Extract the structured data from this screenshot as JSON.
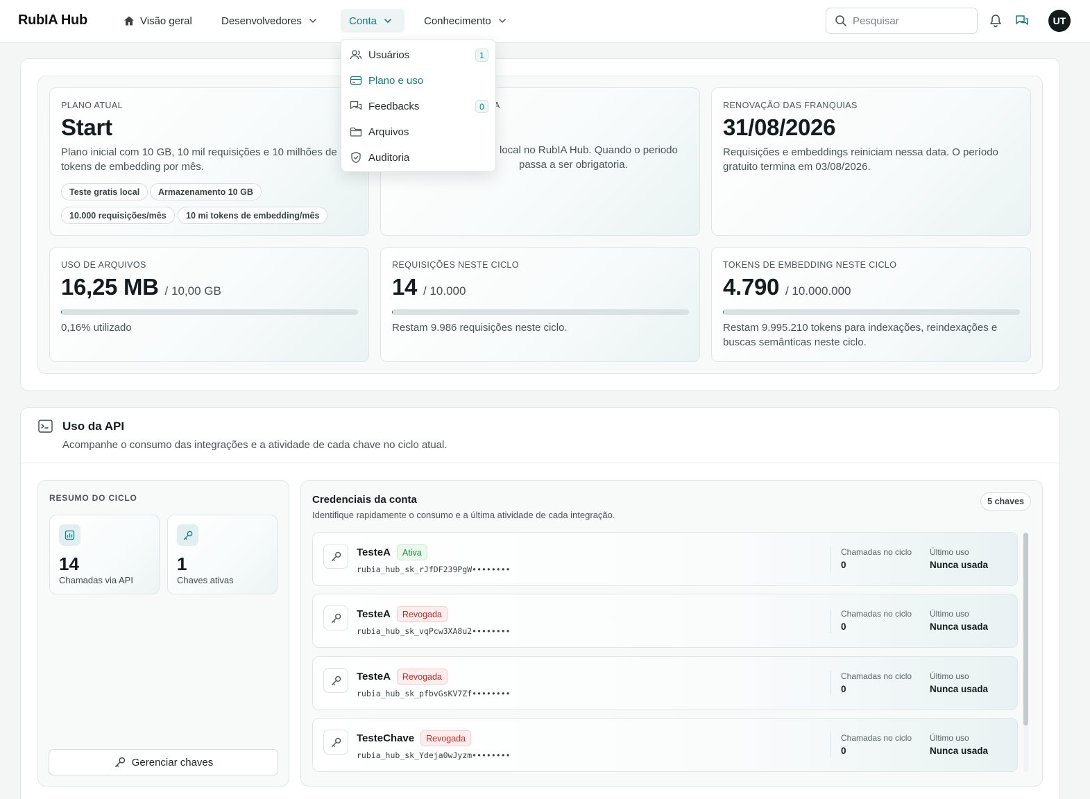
{
  "header": {
    "brand": "RubIA Hub",
    "nav": [
      {
        "label": "Visão geral"
      },
      {
        "label": "Desenvolvedores"
      },
      {
        "label": "Conta"
      },
      {
        "label": "Conhecimento"
      }
    ],
    "search_placeholder": "Pesquisar",
    "avatar_initials": "UT"
  },
  "dropdown": {
    "items": [
      {
        "label": "Usuários",
        "badge": "1"
      },
      {
        "label": "Plano e uso"
      },
      {
        "label": "Feedbacks",
        "badge": "0"
      },
      {
        "label": "Arquivos"
      },
      {
        "label": "Auditoria"
      }
    ]
  },
  "plan": {
    "current": {
      "eyebrow": "PLANO ATUAL",
      "name": "Start",
      "desc": "Plano inicial com 10 GB, 10 mil requisições e 10 milhões de tokens de embedding por mês.",
      "chips": [
        "Teste gratis local",
        "Armazenamento 10 GB",
        "10.000 requisições/mês",
        "10 mi tokens de embedding/mês"
      ]
    },
    "middle": {
      "eyebrow_tail": "A",
      "desc_line1": "local no RubIA Hub. Quando o periodo",
      "desc_line2": "passa a ser obrigatoria."
    },
    "renewal": {
      "eyebrow": "RENOVAÇÃO DAS FRANQUIAS",
      "date": "31/08/2026",
      "desc": "Requisições e embeddings reiniciam nessa data. O período gratuito termina em 03/08/2026."
    },
    "files": {
      "eyebrow": "USO DE ARQUIVOS",
      "value": "16,25 MB",
      "limit": "/ 10,00 GB",
      "progress": 0.0016,
      "note": "0,16% utilizado"
    },
    "requests": {
      "eyebrow": "REQUISIÇÕES NESTE CICLO",
      "value": "14",
      "limit": "/ 10.000",
      "progress": 0.0014,
      "note": "Restam 9.986 requisições neste ciclo."
    },
    "tokens": {
      "eyebrow": "TOKENS DE EMBEDDING NESTE CICLO",
      "value": "4.790",
      "limit": "/ 10.000.000",
      "progress": 0.0005,
      "note": "Restam 9.995.210 tokens para indexações, reindexações e buscas semânticas neste ciclo."
    }
  },
  "api": {
    "title": "Uso da API",
    "subtitle": "Acompanhe o consumo das integrações e a atividade de cada chave no ciclo atual.",
    "summary": {
      "eyebrow": "RESUMO DO CICLO",
      "calls": {
        "value": "14",
        "label": "Chamadas via API"
      },
      "keys": {
        "value": "1",
        "label": "Chaves ativas"
      },
      "manage_label": "Gerenciar chaves"
    },
    "credentials": {
      "title": "Credenciais da conta",
      "subtitle": "Identifique rapidamente o consumo e a última atividade de cada integração.",
      "count_label": "5 chaves",
      "calls_label": "Chamadas no ciclo",
      "last_label": "Último uso",
      "items": [
        {
          "name": "TesteA",
          "status": "Ativa",
          "key": "rubia_hub_sk_rJfDF239PgW••••••••",
          "calls": "0",
          "last": "Nunca usada"
        },
        {
          "name": "TesteA",
          "status": "Revogada",
          "key": "rubia_hub_sk_vqPcw3XA8u2••••••••",
          "calls": "0",
          "last": "Nunca usada"
        },
        {
          "name": "TesteA",
          "status": "Revogada",
          "key": "rubia_hub_sk_pfbvGsKV7Zf••••••••",
          "calls": "0",
          "last": "Nunca usada"
        },
        {
          "name": "TesteChave",
          "status": "Revogada",
          "key": "rubia_hub_sk_Ydeja0wJyzm••••••••",
          "calls": "0",
          "last": "Nunca usada"
        }
      ]
    }
  },
  "colors": {
    "accent": "#177a7d",
    "active_green": "#25813d",
    "revoked_red": "#c32a2a"
  }
}
